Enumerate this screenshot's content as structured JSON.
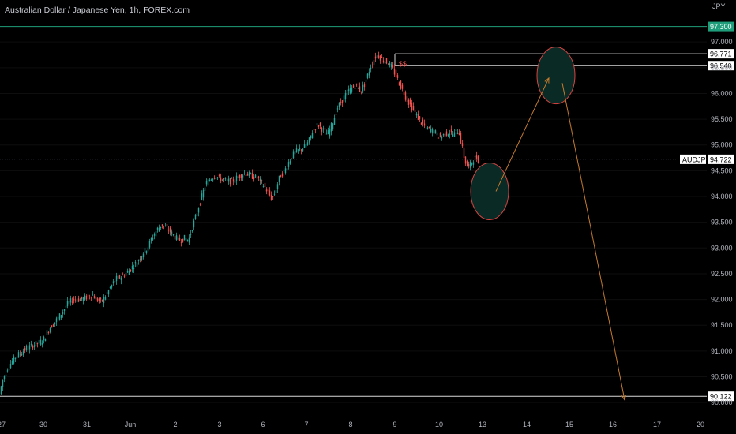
{
  "header": {
    "title": "Australian Dollar / Japanese Yen, 1h, FOREX.com"
  },
  "axis": {
    "currency": "JPY"
  },
  "colors": {
    "up": "#26a69a",
    "down": "#ef5350",
    "line": "#d9d9d9",
    "accent_line": "#1e9e7a",
    "orange": "#c47a2c",
    "circle_stroke": "#d64541",
    "circle_fill": "#0a2a26",
    "flag": "#ef5350"
  },
  "chart_data": {
    "type": "candlestick",
    "symbol": "AUDJPY",
    "timeframe": "1h",
    "ylim": [
      89.88,
      97.6
    ],
    "price_ticks": [
      "97.000",
      "96.500",
      "96.000",
      "95.500",
      "95.000",
      "94.500",
      "94.000",
      "93.500",
      "93.000",
      "92.500",
      "92.000",
      "91.500",
      "91.000",
      "90.500",
      "90.000"
    ],
    "date_ticks": [
      "27",
      "30",
      "31",
      "Jun",
      "2",
      "3",
      "6",
      "7",
      "8",
      "9",
      "10",
      "13",
      "14",
      "15",
      "16",
      "17",
      "20"
    ],
    "price_series": [
      [
        0,
        90.1
      ],
      [
        5,
        90.45
      ],
      [
        12,
        90.7
      ],
      [
        22,
        90.9
      ],
      [
        35,
        91.05
      ],
      [
        48,
        91.15
      ],
      [
        56,
        91.2
      ],
      [
        62,
        91.4
      ],
      [
        70,
        91.55
      ],
      [
        78,
        91.7
      ],
      [
        86,
        91.9
      ],
      [
        94,
        92.0
      ],
      [
        104,
        92.0
      ],
      [
        112,
        92.05
      ],
      [
        118,
        92.1
      ],
      [
        124,
        92.0
      ],
      [
        130,
        91.95
      ],
      [
        134,
        92.05
      ],
      [
        140,
        92.2
      ],
      [
        148,
        92.4
      ],
      [
        156,
        92.45
      ],
      [
        164,
        92.55
      ],
      [
        170,
        92.65
      ],
      [
        176,
        92.75
      ],
      [
        182,
        92.9
      ],
      [
        188,
        93.0
      ],
      [
        194,
        93.2
      ],
      [
        200,
        93.35
      ],
      [
        206,
        93.45
      ],
      [
        212,
        93.4
      ],
      [
        218,
        93.3
      ],
      [
        224,
        93.2
      ],
      [
        230,
        93.15
      ],
      [
        236,
        93.2
      ],
      [
        240,
        93.15
      ],
      [
        244,
        93.35
      ],
      [
        250,
        93.65
      ],
      [
        256,
        93.95
      ],
      [
        262,
        94.25
      ],
      [
        268,
        94.35
      ],
      [
        274,
        94.4
      ],
      [
        280,
        94.35
      ],
      [
        288,
        94.3
      ],
      [
        296,
        94.3
      ],
      [
        304,
        94.4
      ],
      [
        312,
        94.45
      ],
      [
        320,
        94.4
      ],
      [
        328,
        94.35
      ],
      [
        336,
        94.2
      ],
      [
        342,
        94.05
      ],
      [
        346,
        93.95
      ],
      [
        350,
        94.1
      ],
      [
        356,
        94.4
      ],
      [
        362,
        94.5
      ],
      [
        368,
        94.7
      ],
      [
        374,
        94.85
      ],
      [
        380,
        94.9
      ],
      [
        386,
        94.95
      ],
      [
        392,
        95.05
      ],
      [
        398,
        95.3
      ],
      [
        404,
        95.4
      ],
      [
        410,
        95.3
      ],
      [
        416,
        95.2
      ],
      [
        422,
        95.4
      ],
      [
        428,
        95.7
      ],
      [
        434,
        95.85
      ],
      [
        440,
        96.0
      ],
      [
        446,
        96.1
      ],
      [
        452,
        96.15
      ],
      [
        458,
        96.05
      ],
      [
        464,
        96.2
      ],
      [
        470,
        96.5
      ],
      [
        476,
        96.7
      ],
      [
        480,
        96.75
      ],
      [
        486,
        96.65
      ],
      [
        492,
        96.6
      ],
      [
        498,
        96.5
      ],
      [
        504,
        96.3
      ],
      [
        510,
        96.1
      ],
      [
        516,
        95.9
      ],
      [
        522,
        95.75
      ],
      [
        528,
        95.6
      ],
      [
        534,
        95.45
      ],
      [
        540,
        95.35
      ],
      [
        546,
        95.3
      ],
      [
        552,
        95.25
      ],
      [
        558,
        95.15
      ],
      [
        564,
        95.2
      ],
      [
        570,
        95.25
      ],
      [
        576,
        95.2
      ],
      [
        582,
        95.3
      ],
      [
        586,
        95.0
      ],
      [
        590,
        94.7
      ],
      [
        594,
        94.55
      ],
      [
        598,
        94.65
      ],
      [
        602,
        94.75
      ],
      [
        606,
        94.72
      ]
    ],
    "levels": [
      {
        "name": "top-line",
        "value": 97.3,
        "label": "97.300",
        "color": "#1e9e7a",
        "from_x": 0
      },
      {
        "name": "high-line",
        "value": 96.771,
        "label": "96.771",
        "color": "#d9d9d9",
        "from_x": 500
      },
      {
        "name": "res-line",
        "value": 96.54,
        "label": "96.540",
        "color": "#d9d9d9",
        "from_x": 500
      },
      {
        "name": "target-line",
        "value": 90.122,
        "label": "90.122",
        "color": "#d9d9d9",
        "from_x": 0
      }
    ],
    "current": {
      "symbol": "AUDJPY",
      "value": 94.722,
      "label": "94.722"
    },
    "annotation": "$$",
    "projection": [
      [
        628,
        94.1
      ],
      [
        695,
        96.3
      ]
    ],
    "projection2": [
      [
        712,
        96.2
      ],
      [
        791,
        90.05
      ]
    ],
    "circles": [
      {
        "cx": 620,
        "cy_price": 94.1,
        "rx": 24,
        "ry": 36
      },
      {
        "cx": 704,
        "cy_price": 96.35,
        "rx": 24,
        "ry": 36
      }
    ]
  }
}
